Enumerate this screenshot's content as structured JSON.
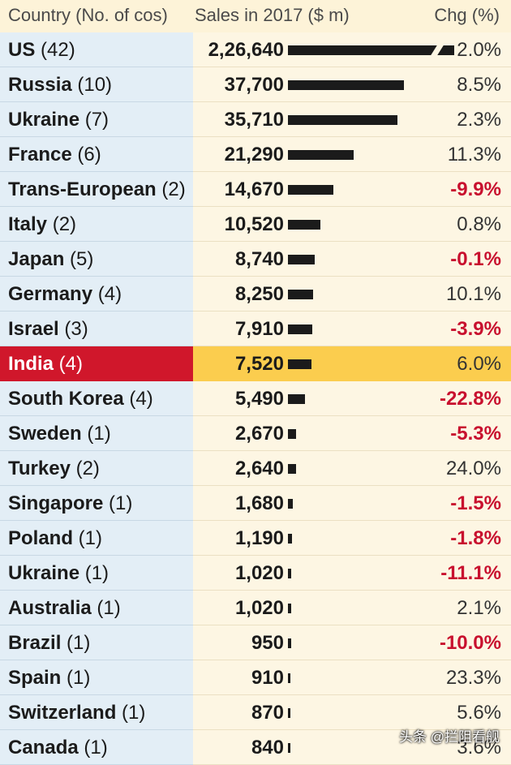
{
  "chart_data": {
    "type": "table",
    "columns": [
      "Country (No. of cos)",
      "Sales in 2017 ($ m)",
      "Chg (%)"
    ],
    "highlight_row": "India",
    "rows": [
      {
        "country": "US",
        "count": "(42)",
        "sales": 226640,
        "sales_label": "2,26,640",
        "chg": 2.0,
        "chg_label": "2.0%"
      },
      {
        "country": "Russia",
        "count": "(10)",
        "sales": 37700,
        "sales_label": "37,700",
        "chg": 8.5,
        "chg_label": "8.5%"
      },
      {
        "country": "Ukraine",
        "count": "(7)",
        "sales": 35710,
        "sales_label": "35,710",
        "chg": 2.3,
        "chg_label": "2.3%"
      },
      {
        "country": "France",
        "count": "(6)",
        "sales": 21290,
        "sales_label": "21,290",
        "chg": 11.3,
        "chg_label": "11.3%"
      },
      {
        "country": "Trans-European",
        "count": "(2)",
        "sales": 14670,
        "sales_label": "14,670",
        "chg": -9.9,
        "chg_label": "-9.9%"
      },
      {
        "country": "Italy",
        "count": "(2)",
        "sales": 10520,
        "sales_label": "10,520",
        "chg": 0.8,
        "chg_label": "0.8%"
      },
      {
        "country": "Japan",
        "count": "(5)",
        "sales": 8740,
        "sales_label": "8,740",
        "chg": -0.1,
        "chg_label": "-0.1%"
      },
      {
        "country": "Germany",
        "count": "(4)",
        "sales": 8250,
        "sales_label": "8,250",
        "chg": 10.1,
        "chg_label": "10.1%"
      },
      {
        "country": "Israel",
        "count": "(3)",
        "sales": 7910,
        "sales_label": "7,910",
        "chg": -3.9,
        "chg_label": "-3.9%"
      },
      {
        "country": "India",
        "count": "(4)",
        "sales": 7520,
        "sales_label": "7,520",
        "chg": 6.0,
        "chg_label": "6.0%"
      },
      {
        "country": "South Korea",
        "count": "(4)",
        "sales": 5490,
        "sales_label": "5,490",
        "chg": -22.8,
        "chg_label": "-22.8%"
      },
      {
        "country": "Sweden",
        "count": "(1)",
        "sales": 2670,
        "sales_label": "2,670",
        "chg": -5.3,
        "chg_label": "-5.3%"
      },
      {
        "country": "Turkey",
        "count": "(2)",
        "sales": 2640,
        "sales_label": "2,640",
        "chg": 24.0,
        "chg_label": "24.0%"
      },
      {
        "country": "Singapore",
        "count": "(1)",
        "sales": 1680,
        "sales_label": "1,680",
        "chg": -1.5,
        "chg_label": "-1.5%"
      },
      {
        "country": "Poland",
        "count": "(1)",
        "sales": 1190,
        "sales_label": "1,190",
        "chg": -1.8,
        "chg_label": "-1.8%"
      },
      {
        "country": "Ukraine",
        "count": "(1)",
        "sales": 1020,
        "sales_label": "1,020",
        "chg": -11.1,
        "chg_label": "-11.1%"
      },
      {
        "country": "Australia",
        "count": "(1)",
        "sales": 1020,
        "sales_label": "1,020",
        "chg": 2.1,
        "chg_label": "2.1%"
      },
      {
        "country": "Brazil",
        "count": "(1)",
        "sales": 950,
        "sales_label": "950",
        "chg": -10.0,
        "chg_label": "-10.0%"
      },
      {
        "country": "Spain",
        "count": "(1)",
        "sales": 910,
        "sales_label": "910",
        "chg": 23.3,
        "chg_label": "23.3%"
      },
      {
        "country": "Switzerland",
        "count": "(1)",
        "sales": 870,
        "sales_label": "870",
        "chg": 5.6,
        "chg_label": "5.6%"
      },
      {
        "country": "Canada",
        "count": "(1)",
        "sales": 840,
        "sales_label": "840",
        "chg": 3.6,
        "chg_label": "3.6%"
      }
    ]
  },
  "watermark": "头条 @拦阻看舰",
  "colors": {
    "bar": "#1b1b1b",
    "negative": "#c8102e",
    "highlight_country": "#d0172b",
    "highlight_rest": "#fbcd4e"
  }
}
